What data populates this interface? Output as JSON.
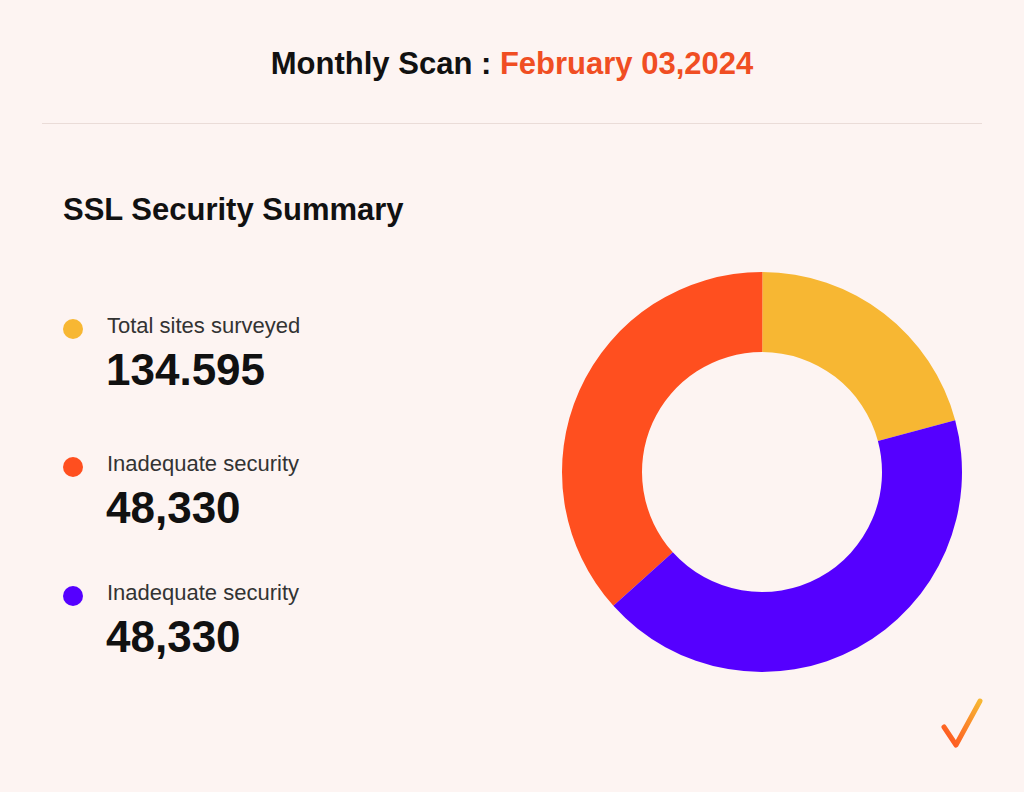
{
  "header": {
    "title": "Monthly Scan :",
    "date": "February 03,2024"
  },
  "chart_data": {
    "type": "donut",
    "title": "SSL Security Summary",
    "categories": [
      "Total sites surveyed",
      "Inadequate security",
      "Inadequate security"
    ],
    "values": [
      20.8,
      36.7,
      42.5
    ],
    "colors": [
      "#f7b733",
      "#ff4f1f",
      "#5500ff"
    ],
    "figures": [
      "134.595",
      "48,330",
      "48,330"
    ]
  }
}
